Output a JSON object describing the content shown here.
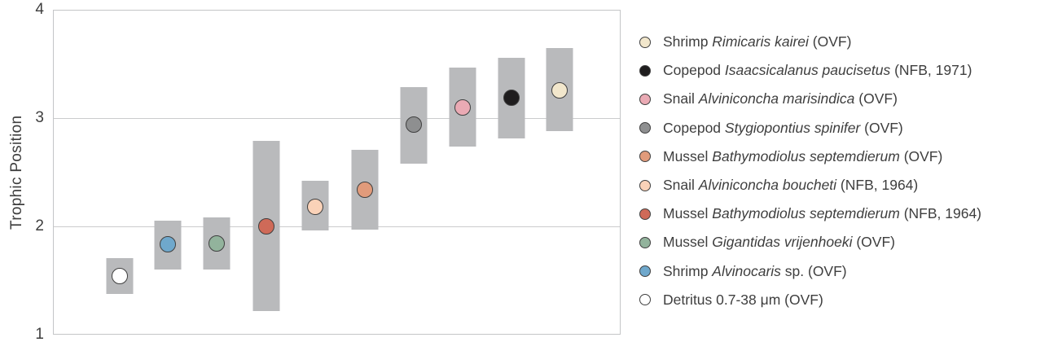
{
  "figure": {
    "background": "#ffffff"
  },
  "chart_data": {
    "type": "scatter",
    "title": "",
    "xlabel": "",
    "ylabel": "Trophic Position",
    "ylim": [
      1,
      4
    ],
    "yticks": [
      1,
      2,
      3,
      4
    ],
    "gridlines": [
      2,
      3
    ],
    "grid": "horizontal",
    "legend_position": "right",
    "colors": {
      "range_bar": "#b9babc",
      "plot_frame": "#c4c5c7",
      "gridline": "#cbcccd",
      "axis_text": "#3e3e3e",
      "marker_outline": "#3f3f3f"
    },
    "series": [
      {
        "x_pct": 11.6,
        "tp": 1.54,
        "range_low": 1.37,
        "range_high": 1.7,
        "color": "#ffffff",
        "legend": {
          "prefix": "Detritus 0.7-38 μm (OVF)",
          "italic": "",
          "suffix": ""
        }
      },
      {
        "x_pct": 20.2,
        "tp": 1.83,
        "range_low": 1.6,
        "range_high": 2.05,
        "color": "#6fa8cc",
        "legend": {
          "prefix": "Shrimp ",
          "italic": "Alvinocaris",
          "suffix": " sp. (OVF)"
        }
      },
      {
        "x_pct": 28.8,
        "tp": 1.84,
        "range_low": 1.6,
        "range_high": 2.08,
        "color": "#92b39c",
        "legend": {
          "prefix": "Mussel ",
          "italic": "Gigantidas vrijenhoeki",
          "suffix": " (OVF)"
        }
      },
      {
        "x_pct": 37.6,
        "tp": 2.0,
        "range_low": 1.21,
        "range_high": 2.79,
        "color": "#cf6a58",
        "legend": {
          "prefix": "Mussel ",
          "italic": "Bathymodiolus septemdierum",
          "suffix": " (NFB, 1964)"
        }
      },
      {
        "x_pct": 46.2,
        "tp": 2.18,
        "range_low": 1.96,
        "range_high": 2.42,
        "color": "#fad2b8",
        "legend": {
          "prefix": "Snail ",
          "italic": "Alviniconcha boucheti",
          "suffix": " (NFB, 1964)"
        }
      },
      {
        "x_pct": 54.9,
        "tp": 2.34,
        "range_low": 1.97,
        "range_high": 2.71,
        "color": "#e19b7b",
        "legend": {
          "prefix": "Mussel ",
          "italic": "Bathymodiolus septemdierum",
          "suffix": " (OVF)"
        }
      },
      {
        "x_pct": 63.6,
        "tp": 2.94,
        "range_low": 2.58,
        "range_high": 3.29,
        "color": "#8e8f90",
        "legend": {
          "prefix": "Copepod ",
          "italic": "Stygiopontius spinifer",
          "suffix": " (OVF)"
        }
      },
      {
        "x_pct": 72.2,
        "tp": 3.1,
        "range_low": 2.74,
        "range_high": 3.47,
        "color": "#eaaab4",
        "legend": {
          "prefix": "Snail ",
          "italic": "Alviniconcha marisindica",
          "suffix": " (OVF)"
        }
      },
      {
        "x_pct": 80.8,
        "tp": 3.19,
        "range_low": 2.81,
        "range_high": 3.56,
        "color": "#1f1d1e",
        "legend": {
          "prefix": "Copepod ",
          "italic": "Isaacsicalanus paucisetus",
          "suffix": " (NFB, 1971)"
        }
      },
      {
        "x_pct": 89.4,
        "tp": 3.26,
        "range_low": 2.88,
        "range_high": 3.65,
        "color": "#f2e7cc",
        "legend": {
          "prefix": "Shrimp ",
          "italic": "Rimicaris kairei",
          "suffix": " (OVF)"
        }
      }
    ],
    "legend_order": "reverse_of_series"
  }
}
